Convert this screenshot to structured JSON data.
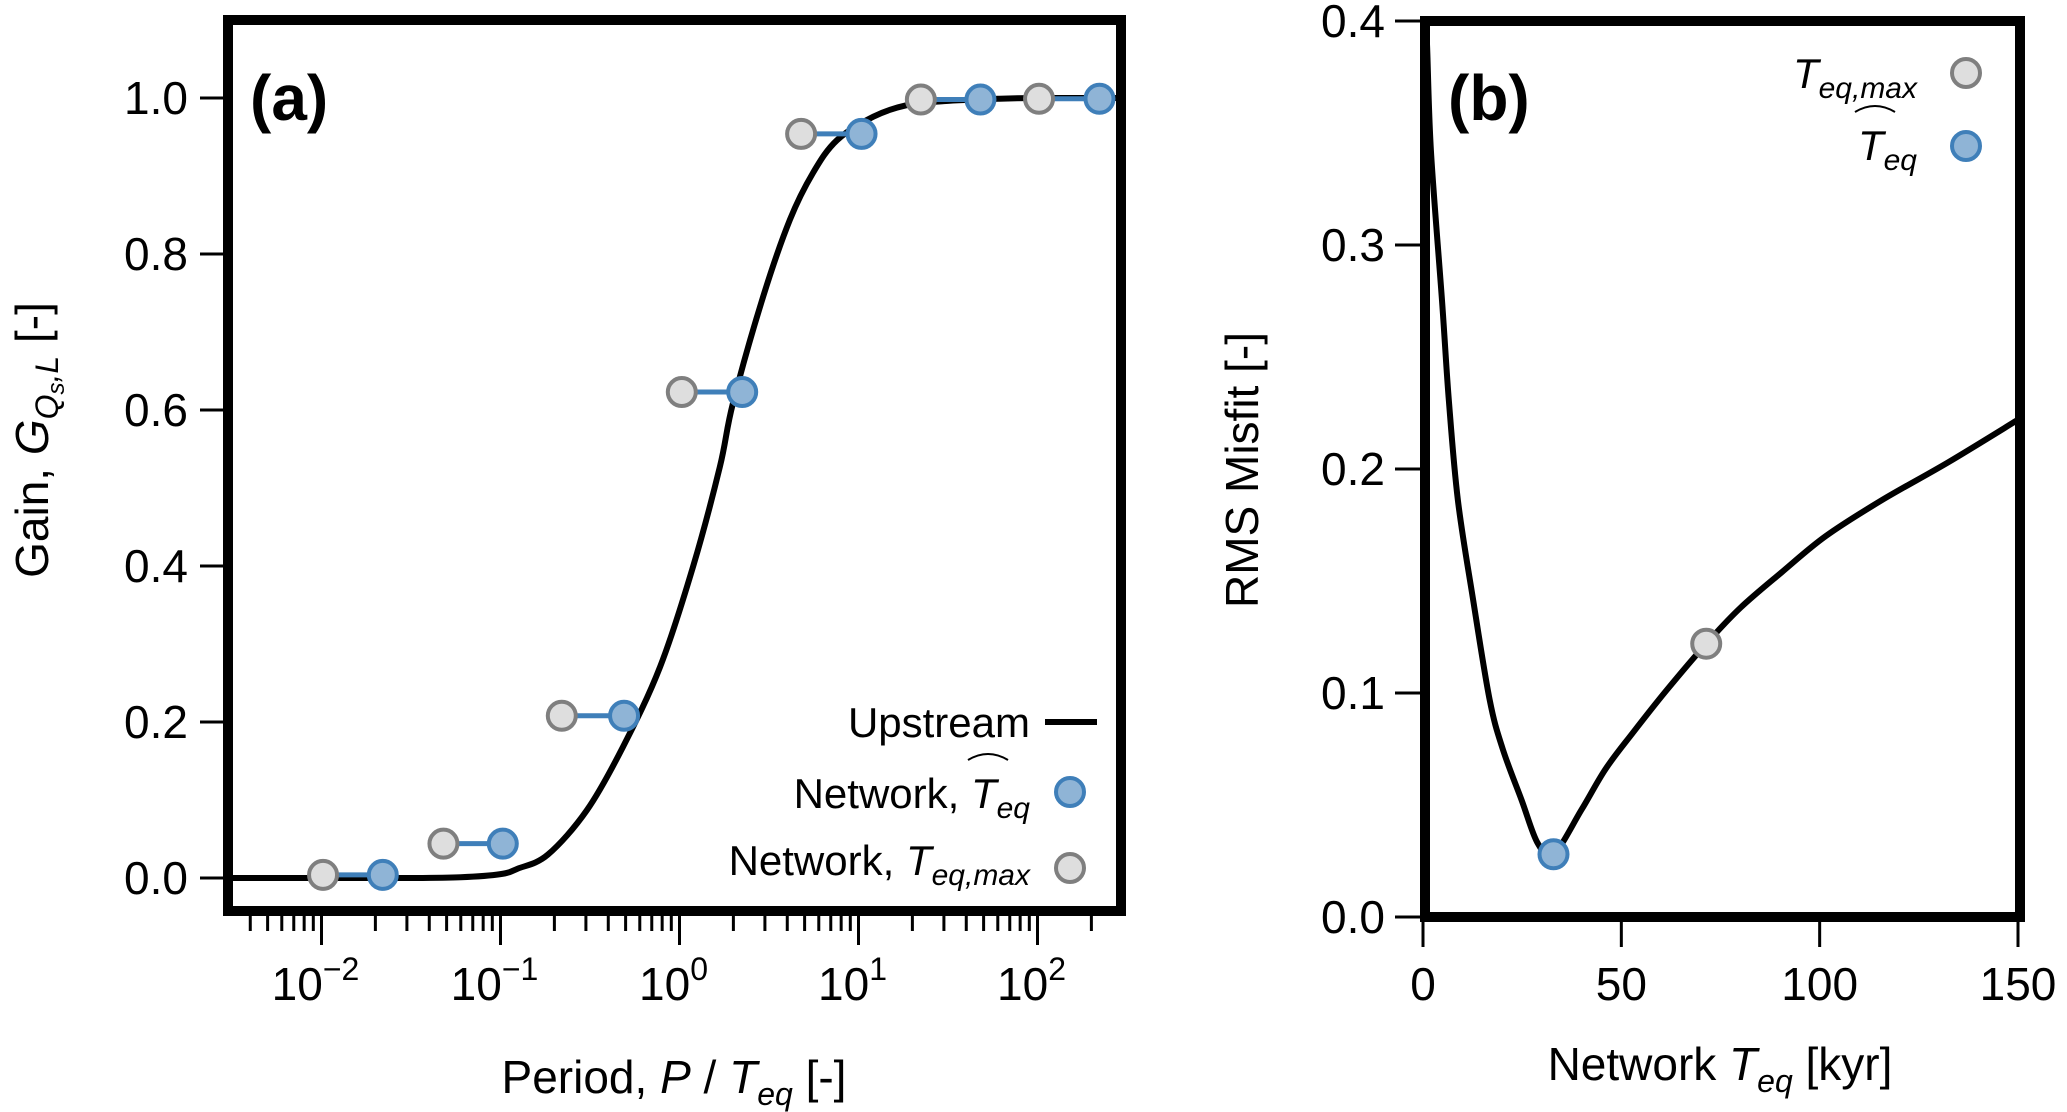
{
  "colors": {
    "blue_fill": "#8fb4d6",
    "blue_edge": "#3f7fb9",
    "gray_fill": "#dedede",
    "gray_edge": "#7f7f7f",
    "line": "#000000",
    "connector": "#3f7fb9"
  },
  "chart_data": [
    {
      "panel": "a",
      "type": "line+scatter",
      "panel_label": "(a)",
      "xlabel": "Period, P / T_eq [-]",
      "xlabel_parts": {
        "prefix": "Period, ",
        "var": "P",
        "sep": " / ",
        "var2": "T",
        "sub2": "eq",
        "suffix": " [-]"
      },
      "ylabel": "Gain, G_{Qs,L} [-]",
      "ylabel_parts": {
        "prefix": "Gain, ",
        "var": "G",
        "sub": "Q",
        "subsub": "s",
        "sub_tail": ",L",
        "suffix": " [-]"
      },
      "xscale": "log",
      "xlim": [
        0.003,
        300
      ],
      "ylim": [
        -0.05,
        1.1
      ],
      "xticks": [
        {
          "value": 0.01,
          "base": "10",
          "exp": "−2"
        },
        {
          "value": 0.1,
          "base": "10",
          "exp": "−1"
        },
        {
          "value": 1,
          "base": "10",
          "exp": "0"
        },
        {
          "value": 10,
          "base": "10",
          "exp": "1"
        },
        {
          "value": 100,
          "base": "10",
          "exp": "2"
        }
      ],
      "yticks": [
        {
          "value": 0.0,
          "label": "0.0"
        },
        {
          "value": 0.2,
          "label": "0.2"
        },
        {
          "value": 0.4,
          "label": "0.4"
        },
        {
          "value": 0.6,
          "label": "0.6"
        },
        {
          "value": 0.8,
          "label": "0.8"
        },
        {
          "value": 1.0,
          "label": "1.0"
        }
      ],
      "series": [
        {
          "name": "Upstream",
          "kind": "line",
          "x": [
            0.003,
            0.01,
            0.03,
            0.06,
            0.1,
            0.125,
            0.184,
            0.304,
            0.483,
            0.78,
            1.19,
            1.68,
            1.99,
            2.93,
            4.14,
            5.57,
            7.59,
            12.1,
            18.7,
            30,
            60,
            100,
            300
          ],
          "y": [
            0.0,
            0.0,
            0.0,
            0.001,
            0.005,
            0.012,
            0.03,
            0.087,
            0.168,
            0.271,
            0.399,
            0.527,
            0.609,
            0.745,
            0.844,
            0.904,
            0.946,
            0.976,
            0.991,
            0.996,
            0.999,
            1.0,
            1.0
          ]
        },
        {
          "name": "Network, T̂_eq",
          "kind": "scatter",
          "marker": "blue",
          "x": [
            0.022,
            0.103,
            0.49,
            2.24,
            10.4,
            48,
            222
          ],
          "y": [
            0.004,
            0.044,
            0.208,
            0.623,
            0.954,
            0.998,
            0.999
          ]
        },
        {
          "name": "Network, T_eq,max",
          "kind": "scatter",
          "marker": "gray",
          "x": [
            0.0102,
            0.048,
            0.22,
            1.03,
            4.78,
            22.3,
            102
          ],
          "y": [
            0.004,
            0.044,
            0.208,
            0.623,
            0.954,
            0.998,
            0.999
          ]
        }
      ],
      "legend": {
        "position": "lower-right",
        "entries": [
          {
            "label": "Upstream",
            "marker": "line"
          },
          {
            "label_prefix": "Network, ",
            "var": "T",
            "sub": "eq",
            "hat": true,
            "marker": "blue"
          },
          {
            "label_prefix": "Network, ",
            "var": "T",
            "sub": "eq,max",
            "hat": false,
            "marker": "gray"
          }
        ]
      }
    },
    {
      "panel": "b",
      "type": "line+scatter",
      "panel_label": "(b)",
      "xlabel": "Network T_eq [kyr]",
      "xlabel_parts": {
        "prefix": "Network ",
        "var": "T",
        "sub": "eq",
        "suffix": " [kyr]"
      },
      "ylabel": "RMS Misfit [-]",
      "xlim": [
        0,
        150
      ],
      "ylim": [
        0,
        0.4
      ],
      "xticks": [
        {
          "value": 0,
          "label": "0"
        },
        {
          "value": 50,
          "label": "50"
        },
        {
          "value": 100,
          "label": "100"
        },
        {
          "value": 150,
          "label": "150"
        }
      ],
      "yticks": [
        {
          "value": 0.0,
          "label": "0.0"
        },
        {
          "value": 0.1,
          "label": "0.1"
        },
        {
          "value": 0.2,
          "label": "0.2"
        },
        {
          "value": 0.3,
          "label": "0.3"
        },
        {
          "value": 0.4,
          "label": "0.4"
        }
      ],
      "series": [
        {
          "name": "RMS misfit",
          "kind": "line",
          "x": [
            0.5,
            1.0,
            2.0,
            4.8,
            6.5,
            8.8,
            12.6,
            16.8,
            20.1,
            24.9,
            28.9,
            32.9,
            40,
            46,
            52.8,
            61.3,
            71.4,
            80,
            90.5,
            101.5,
            115.6,
            132.4,
            150
          ],
          "y": [
            0.4,
            0.39,
            0.342,
            0.275,
            0.231,
            0.186,
            0.142,
            0.097,
            0.075,
            0.052,
            0.033,
            0.028,
            0.048,
            0.066,
            0.082,
            0.101,
            0.122,
            0.138,
            0.154,
            0.17,
            0.186,
            0.203,
            0.222
          ]
        },
        {
          "name": "T_eq,max",
          "kind": "scatter",
          "marker": "gray",
          "x": [
            71.4
          ],
          "y": [
            0.122
          ]
        },
        {
          "name": "T̂_eq",
          "kind": "scatter",
          "marker": "blue",
          "x": [
            32.9
          ],
          "y": [
            0.028
          ]
        }
      ],
      "legend": {
        "position": "upper-right",
        "entries": [
          {
            "var": "T",
            "sub": "eq,max",
            "hat": false,
            "marker": "gray"
          },
          {
            "var": "T",
            "sub": "eq",
            "hat": true,
            "marker": "blue"
          }
        ]
      }
    }
  ]
}
